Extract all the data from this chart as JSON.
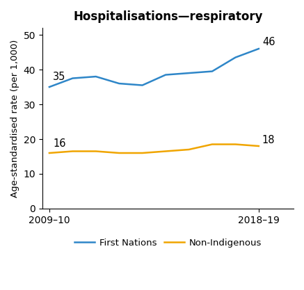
{
  "title": "Hospitalisations—respiratory",
  "ylabel": "Age-standardised rate (per 1,000)",
  "x_labels": [
    "2009–10",
    "2018–19"
  ],
  "x_positions": [
    0,
    1,
    2,
    3,
    4,
    5,
    6,
    7,
    8,
    9
  ],
  "first_nations": [
    35,
    37.5,
    38,
    36,
    35.5,
    38.5,
    39,
    39.5,
    43.5,
    46
  ],
  "non_indigenous": [
    16,
    16.5,
    16.5,
    16,
    16,
    16.5,
    17,
    18.5,
    18.5,
    18
  ],
  "fn_color": "#2e86c8",
  "ni_color": "#f0a500",
  "fn_label": "First Nations",
  "ni_label": "Non-Indigenous",
  "fn_start_label": "35",
  "fn_end_label": "46",
  "ni_start_label": "16",
  "ni_end_label": "18",
  "ylim": [
    0,
    52
  ],
  "yticks": [
    0,
    10,
    20,
    30,
    40,
    50
  ],
  "title_fontsize": 12,
  "label_fontsize": 9.5,
  "tick_fontsize": 10,
  "annotation_fontsize": 10.5
}
